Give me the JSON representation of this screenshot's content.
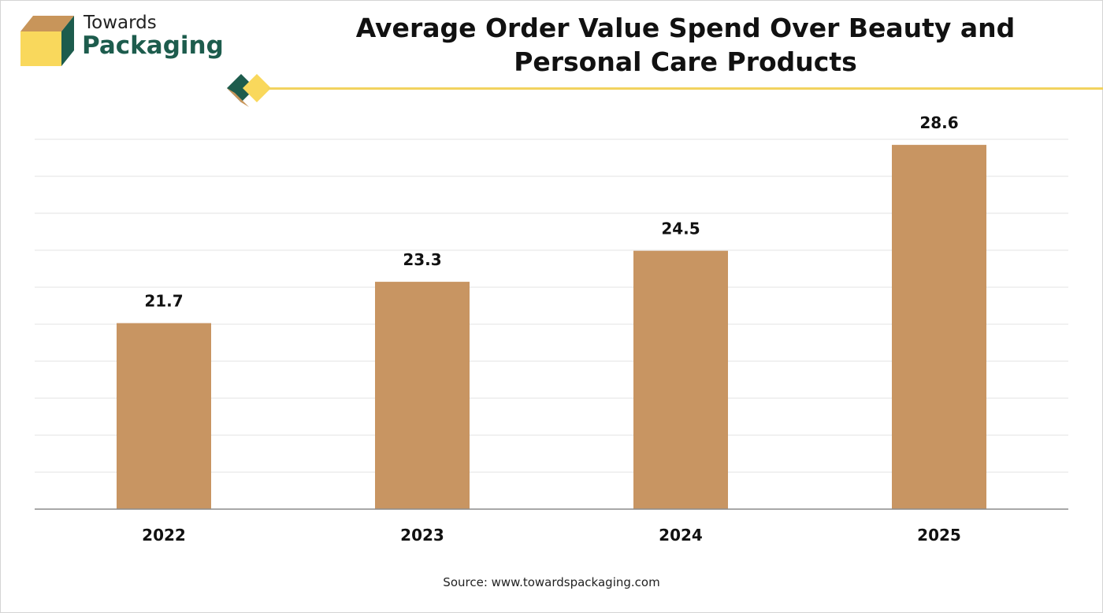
{
  "header": {
    "logo_top": "Towards",
    "logo_bottom": "Packaging",
    "logo_colors": {
      "tan": "#c8955a",
      "green": "#1d5c4d",
      "yellow": "#f9d85c"
    }
  },
  "chart_data": {
    "type": "bar",
    "title": "Average Order Value Spend Over Beauty and Personal Care Products",
    "categories": [
      "2022",
      "2023",
      "2024",
      "2025"
    ],
    "values": [
      21.7,
      23.3,
      24.5,
      28.6
    ],
    "value_labels": [
      "21.7",
      "23.3",
      "24.5",
      "28.6"
    ],
    "xlabel": "",
    "ylabel": "",
    "grid": true,
    "legend": "none",
    "bar_color": "#c89562"
  },
  "footer": {
    "source": "Source: www.towardspackaging.com"
  }
}
